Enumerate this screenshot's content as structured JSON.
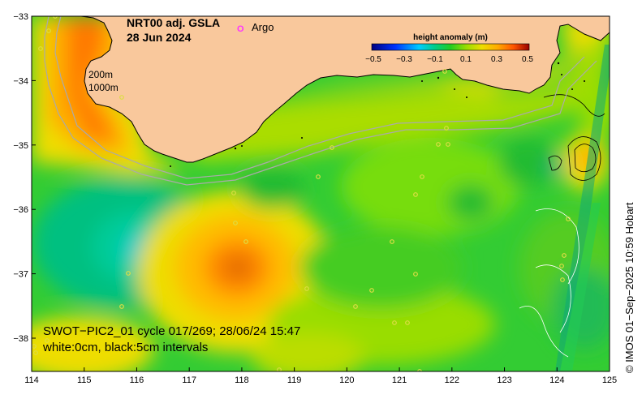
{
  "title": {
    "line1": "NRT00 adj. GSLA",
    "line2": "28 Jun 2024"
  },
  "legend": {
    "argo_label": "Argo",
    "argo_marker": "O",
    "argo_color": "#ff33ff"
  },
  "colorbar": {
    "title": "height anomaly (m)",
    "ticks": [
      "−0.5",
      "−0.3",
      "−0.1",
      "0.1",
      "0.3",
      "0.5"
    ],
    "colors": [
      "#000080",
      "#0022dd",
      "#0099ff",
      "#00d4d4",
      "#00c060",
      "#22cc22",
      "#88dd00",
      "#eedd00",
      "#ffaa00",
      "#ff6600",
      "#dd1100",
      "#990000"
    ]
  },
  "isobaths": {
    "label_200": "200m",
    "label_1000": "1000m"
  },
  "caption": {
    "line1": "SWOT−PIC2_01 cycle 017/269; 28/06/24 15:47",
    "line2": "white:0cm, black:5cm intervals"
  },
  "credit": "© IMOS 01−Sep−2025 10:59 Hobart",
  "axes": {
    "x_ticks": [
      "114",
      "115",
      "116",
      "117",
      "118",
      "119",
      "120",
      "121",
      "122",
      "123",
      "124",
      "125"
    ],
    "y_ticks": [
      "−33",
      "−34",
      "−35",
      "−36",
      "−37",
      "−38"
    ]
  },
  "colors": {
    "land": "#f9c89c",
    "ocean_base": "#33cc33",
    "coast": "#000000",
    "isobath": "#aaaaaa"
  }
}
